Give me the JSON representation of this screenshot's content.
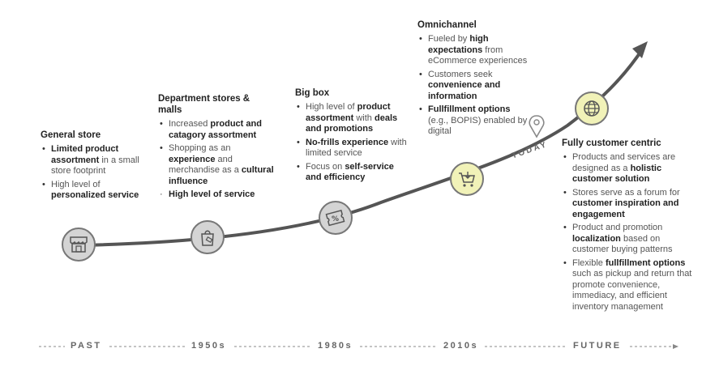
{
  "axis": {
    "labels": [
      "PAST",
      "1950s",
      "1980s",
      "2010s",
      "FUTURE"
    ],
    "today_label": "TODAY"
  },
  "colors": {
    "curve": "#555555",
    "node_past": "#d4d4d4",
    "node_now": "#f1f2b8",
    "dashes": "#888888"
  },
  "stages": [
    {
      "title": "General store",
      "icon": "storefront-icon",
      "bullets": [
        {
          "parts": [
            [
              "Limited product assortment",
              true
            ],
            [
              " in a small store footprint",
              false
            ]
          ]
        },
        {
          "parts": [
            [
              "High level of ",
              false
            ],
            [
              "personalized service",
              true
            ]
          ]
        }
      ]
    },
    {
      "title": "Department stores & malls",
      "icon": "shopping-bag-icon",
      "bullets": [
        {
          "parts": [
            [
              "Increased ",
              false
            ],
            [
              "product and catagory assortment",
              true
            ]
          ]
        },
        {
          "parts": [
            [
              "Shopping as an ",
              false
            ],
            [
              "experience",
              true
            ],
            [
              " and merchandise as a ",
              false
            ],
            [
              "cultural influence",
              true
            ]
          ]
        },
        {
          "parts": [
            [
              "High level of service",
              true
            ]
          ],
          "marker": "dot"
        }
      ]
    },
    {
      "title": "Big box",
      "icon": "discount-tag-icon",
      "bullets": [
        {
          "parts": [
            [
              "High level of ",
              false
            ],
            [
              "product assortment",
              true
            ],
            [
              " with ",
              false
            ],
            [
              "deals and promotions",
              true
            ]
          ]
        },
        {
          "parts": [
            [
              "No-frills experience",
              true
            ],
            [
              " with limited service",
              false
            ]
          ]
        },
        {
          "parts": [
            [
              "Focus on ",
              false
            ],
            [
              "self-service and efficiency",
              true
            ]
          ]
        }
      ]
    },
    {
      "title": "Omnichannel",
      "icon": "shopping-cart-icon",
      "bullets": [
        {
          "parts": [
            [
              "Fueled by ",
              false
            ],
            [
              "high expectations",
              true
            ],
            [
              " from eCommerce experiences",
              false
            ]
          ]
        },
        {
          "parts": [
            [
              "Customers seek ",
              false
            ],
            [
              "convenience and information",
              true
            ]
          ]
        },
        {
          "parts": [
            [
              "Fullfillment options",
              true
            ],
            [
              " (e.g., BOPIS) enabled by digital",
              false
            ]
          ]
        }
      ]
    },
    {
      "title": "Fully customer centric",
      "icon": "globe-icon",
      "bullets": [
        {
          "parts": [
            [
              "Products and services are designed as a ",
              false
            ],
            [
              "holistic customer solution",
              true
            ]
          ]
        },
        {
          "parts": [
            [
              "Stores serve as a forum for ",
              false
            ],
            [
              "customer inspiration and engagement",
              true
            ]
          ]
        },
        {
          "parts": [
            [
              "Product and promotion ",
              false
            ],
            [
              "localization",
              true
            ],
            [
              " based on customer buying patterns",
              false
            ]
          ]
        },
        {
          "parts": [
            [
              "Flexible ",
              false
            ],
            [
              "fullfillment options",
              true
            ],
            [
              " such as pickup and return that promote convenience, immediacy, and efficient inventory management",
              false
            ]
          ]
        }
      ]
    }
  ]
}
